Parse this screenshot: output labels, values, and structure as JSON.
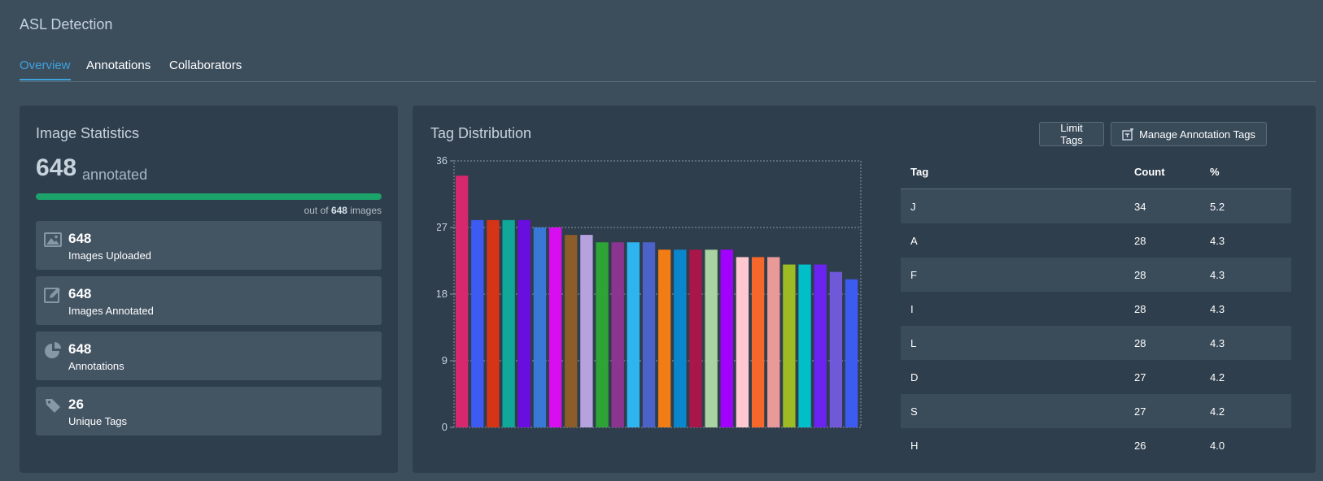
{
  "app": {
    "title": "ASL Detection"
  },
  "tabs": [
    {
      "label": "Overview",
      "active": true
    },
    {
      "label": "Annotations",
      "active": false
    },
    {
      "label": "Collaborators",
      "active": false
    }
  ],
  "stats": {
    "title": "Image Statistics",
    "annotated_count": "648",
    "annotated_word": "annotated",
    "progress_fraction": 1.0,
    "out_of_prefix": "out of",
    "out_of_total": "648",
    "out_of_suffix": "images",
    "cards": [
      {
        "icon": "image-icon",
        "value": "648",
        "label": "Images Uploaded"
      },
      {
        "icon": "edit-icon",
        "value": "648",
        "label": "Images Annotated"
      },
      {
        "icon": "pie-chart-icon",
        "value": "648",
        "label": "Annotations"
      },
      {
        "icon": "tag-icon",
        "value": "26",
        "label": "Unique Tags"
      }
    ],
    "progress_color": "#1ba36a"
  },
  "distribution": {
    "title": "Tag Distribution",
    "limit_button": "Limit Tags",
    "manage_button": "Manage Annotation Tags",
    "table": {
      "headers": [
        "Tag",
        "Count",
        "%"
      ],
      "rows": [
        [
          "J",
          "34",
          "5.2"
        ],
        [
          "A",
          "28",
          "4.3"
        ],
        [
          "F",
          "28",
          "4.3"
        ],
        [
          "I",
          "28",
          "4.3"
        ],
        [
          "L",
          "28",
          "4.3"
        ],
        [
          "D",
          "27",
          "4.2"
        ],
        [
          "S",
          "27",
          "4.2"
        ],
        [
          "H",
          "26",
          "4.0"
        ]
      ]
    }
  },
  "chart_data": {
    "type": "bar",
    "values": [
      34,
      28,
      28,
      28,
      28,
      27,
      27,
      26,
      26,
      25,
      25,
      25,
      25,
      24,
      24,
      24,
      24,
      24,
      23,
      23,
      23,
      22,
      22,
      22,
      21,
      20
    ],
    "colors": [
      "#d6286f",
      "#3d5af1",
      "#d63417",
      "#0fa899",
      "#6a0de0",
      "#3a78d8",
      "#d90ef0",
      "#8c5c2a",
      "#b7a2e0",
      "#2ea336",
      "#8c3590",
      "#2eb5f0",
      "#4b62c9",
      "#f27d14",
      "#0a86cc",
      "#a8164a",
      "#a9d3a3",
      "#a200ff",
      "#ffc8d0",
      "#f5672b",
      "#e89a98",
      "#9dbb25",
      "#00bfc9",
      "#6a23f0",
      "#6f59d9",
      "#3d5af1"
    ],
    "y_ticks": [
      "0",
      "9",
      "18",
      "27",
      "36"
    ],
    "ylim": [
      0,
      36
    ],
    "grid": true
  }
}
